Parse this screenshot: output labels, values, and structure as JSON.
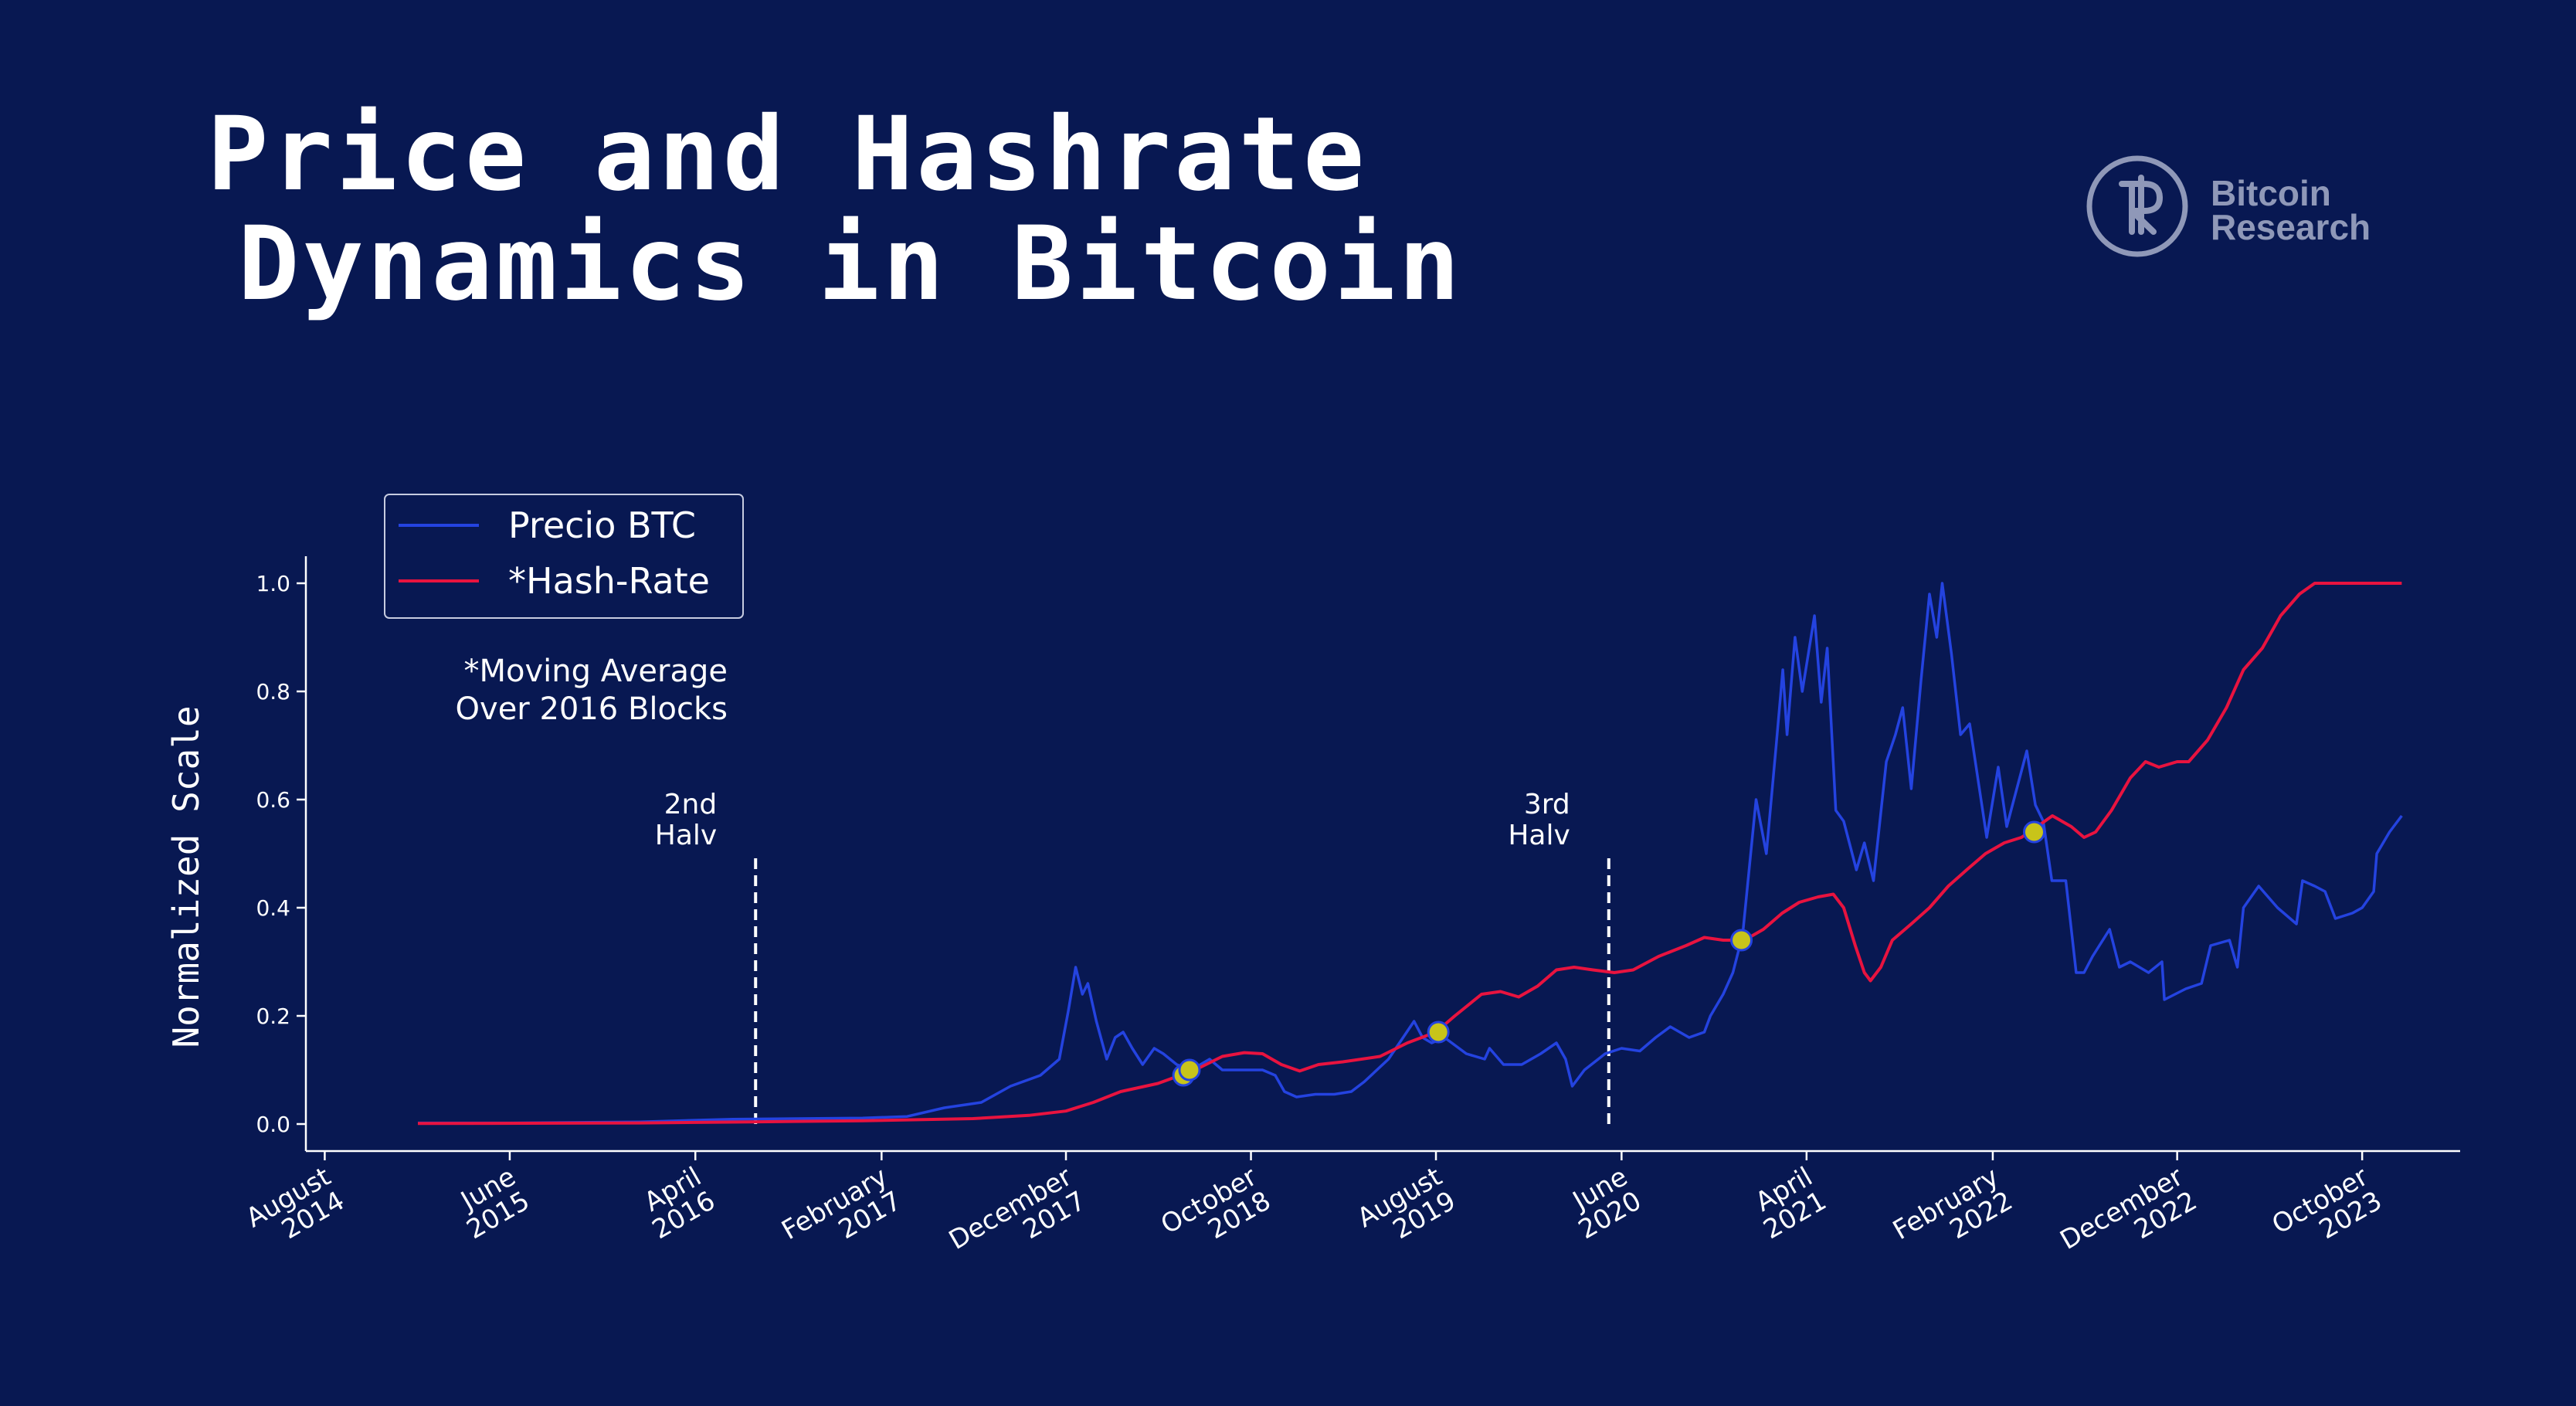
{
  "title": {
    "line1": "Price and Hashrate",
    "line2": "Dynamics in Bitcoin"
  },
  "logo": {
    "line1": "Bitcoin",
    "line2": "Research",
    "icon": "bitcoin-research-logo-icon",
    "color": "#8f98b8"
  },
  "colors": {
    "background": "#081852",
    "price": "#2443e0",
    "hashrate": "#e8133f",
    "intersection_marker": "#c8c41a"
  },
  "chart_data": {
    "type": "line",
    "title": "Price and Hashrate Dynamics in Bitcoin",
    "xlabel": "",
    "ylabel": "Normalized Scale",
    "ylim": [
      -0.05,
      1.05
    ],
    "xlim": [
      "2014-07-01",
      "2024-03-10"
    ],
    "y_ticks": [
      0.0,
      0.2,
      0.4,
      0.6,
      0.8,
      1.0
    ],
    "y_tick_labels": [
      "0.0",
      "0.2",
      "0.4",
      "0.6",
      "0.8",
      "1.0"
    ],
    "x_ticks": [
      {
        "date": "2014-08-01",
        "label": [
          "August",
          "2014"
        ]
      },
      {
        "date": "2015-06-01",
        "label": [
          "June",
          "2015"
        ]
      },
      {
        "date": "2016-04-01",
        "label": [
          "April",
          "2016"
        ]
      },
      {
        "date": "2017-02-01",
        "label": [
          "February",
          "2017"
        ]
      },
      {
        "date": "2017-12-01",
        "label": [
          "December",
          "2017"
        ]
      },
      {
        "date": "2018-10-01",
        "label": [
          "October",
          "2018"
        ]
      },
      {
        "date": "2019-08-01",
        "label": [
          "August",
          "2019"
        ]
      },
      {
        "date": "2020-06-01",
        "label": [
          "June",
          "2020"
        ]
      },
      {
        "date": "2021-04-01",
        "label": [
          "April",
          "2021"
        ]
      },
      {
        "date": "2022-02-01",
        "label": [
          "February",
          "2022"
        ]
      },
      {
        "date": "2022-12-01",
        "label": [
          "December",
          "2022"
        ]
      },
      {
        "date": "2023-10-01",
        "label": [
          "October",
          "2023"
        ]
      }
    ],
    "legend": {
      "position": "top-left",
      "entries": [
        "Precio BTC",
        "*Hash-Rate"
      ]
    },
    "grid": false,
    "annotations": [
      {
        "lines": [
          "*Moving Average",
          "Over 2016 Blocks"
        ]
      }
    ],
    "halvings": [
      {
        "date": "2016-07-09",
        "label": [
          "2nd",
          "Halv"
        ],
        "y_top": 0.5
      },
      {
        "date": "2020-05-11",
        "label": [
          "3rd",
          "Halv"
        ],
        "y_top": 0.5
      }
    ],
    "crossings": [
      {
        "date": "2018-06-12",
        "value": 0.09
      },
      {
        "date": "2018-06-22",
        "value": 0.1
      },
      {
        "date": "2019-08-05",
        "value": 0.17
      },
      {
        "date": "2020-12-15",
        "value": 0.34
      },
      {
        "date": "2022-04-10",
        "value": 0.54
      }
    ],
    "series": [
      {
        "name": "Precio BTC",
        "color": "#2443e0",
        "points": [
          [
            "2015-01-01",
            0.002
          ],
          [
            "2015-06-01",
            0.002
          ],
          [
            "2016-01-01",
            0.004
          ],
          [
            "2016-06-01",
            0.009
          ],
          [
            "2017-01-01",
            0.011
          ],
          [
            "2017-03-15",
            0.014
          ],
          [
            "2017-05-15",
            0.03
          ],
          [
            "2017-07-15",
            0.04
          ],
          [
            "2017-09-01",
            0.07
          ],
          [
            "2017-10-20",
            0.09
          ],
          [
            "2017-11-20",
            0.12
          ],
          [
            "2017-12-05",
            0.21
          ],
          [
            "2017-12-17",
            0.29
          ],
          [
            "2017-12-28",
            0.24
          ],
          [
            "2018-01-06",
            0.26
          ],
          [
            "2018-01-20",
            0.19
          ],
          [
            "2018-02-06",
            0.12
          ],
          [
            "2018-02-20",
            0.16
          ],
          [
            "2018-03-05",
            0.17
          ],
          [
            "2018-03-20",
            0.14
          ],
          [
            "2018-04-06",
            0.11
          ],
          [
            "2018-04-25",
            0.14
          ],
          [
            "2018-05-10",
            0.13
          ],
          [
            "2018-06-01",
            0.11
          ],
          [
            "2018-06-25",
            0.1
          ],
          [
            "2018-07-25",
            0.12
          ],
          [
            "2018-08-15",
            0.1
          ],
          [
            "2018-09-15",
            0.1
          ],
          [
            "2018-10-20",
            0.1
          ],
          [
            "2018-11-10",
            0.09
          ],
          [
            "2018-11-25",
            0.06
          ],
          [
            "2018-12-15",
            0.05
          ],
          [
            "2019-01-15",
            0.055
          ],
          [
            "2019-02-15",
            0.055
          ],
          [
            "2019-03-15",
            0.06
          ],
          [
            "2019-04-05",
            0.078
          ],
          [
            "2019-05-15",
            0.12
          ],
          [
            "2019-06-26",
            0.19
          ],
          [
            "2019-07-10",
            0.16
          ],
          [
            "2019-07-25",
            0.15
          ],
          [
            "2019-08-15",
            0.16
          ],
          [
            "2019-09-20",
            0.13
          ],
          [
            "2019-10-20",
            0.12
          ],
          [
            "2019-10-28",
            0.14
          ],
          [
            "2019-11-20",
            0.11
          ],
          [
            "2019-12-20",
            0.11
          ],
          [
            "2020-01-20",
            0.13
          ],
          [
            "2020-02-15",
            0.15
          ],
          [
            "2020-03-01",
            0.12
          ],
          [
            "2020-03-12",
            0.07
          ],
          [
            "2020-04-01",
            0.1
          ],
          [
            "2020-05-05",
            0.13
          ],
          [
            "2020-06-01",
            0.14
          ],
          [
            "2020-07-01",
            0.135
          ],
          [
            "2020-07-27",
            0.16
          ],
          [
            "2020-08-20",
            0.18
          ],
          [
            "2020-09-20",
            0.16
          ],
          [
            "2020-10-15",
            0.17
          ],
          [
            "2020-10-25",
            0.2
          ],
          [
            "2020-11-15",
            0.24
          ],
          [
            "2020-12-01",
            0.28
          ],
          [
            "2020-12-17",
            0.35
          ],
          [
            "2021-01-08",
            0.6
          ],
          [
            "2021-01-25",
            0.5
          ],
          [
            "2021-02-10",
            0.7
          ],
          [
            "2021-02-21",
            0.84
          ],
          [
            "2021-02-28",
            0.72
          ],
          [
            "2021-03-13",
            0.9
          ],
          [
            "2021-03-25",
            0.8
          ],
          [
            "2021-04-14",
            0.94
          ],
          [
            "2021-04-25",
            0.78
          ],
          [
            "2021-05-05",
            0.88
          ],
          [
            "2021-05-19",
            0.58
          ],
          [
            "2021-06-01",
            0.56
          ],
          [
            "2021-06-22",
            0.47
          ],
          [
            "2021-07-05",
            0.52
          ],
          [
            "2021-07-20",
            0.45
          ],
          [
            "2021-08-10",
            0.67
          ],
          [
            "2021-08-25",
            0.72
          ],
          [
            "2021-09-06",
            0.77
          ],
          [
            "2021-09-20",
            0.62
          ],
          [
            "2021-10-06",
            0.82
          ],
          [
            "2021-10-20",
            0.98
          ],
          [
            "2021-11-01",
            0.9
          ],
          [
            "2021-11-10",
            1.0
          ],
          [
            "2021-11-25",
            0.87
          ],
          [
            "2021-12-10",
            0.72
          ],
          [
            "2021-12-25",
            0.74
          ],
          [
            "2022-01-10",
            0.62
          ],
          [
            "2022-01-22",
            0.53
          ],
          [
            "2022-02-10",
            0.66
          ],
          [
            "2022-02-24",
            0.55
          ],
          [
            "2022-03-29",
            0.69
          ],
          [
            "2022-04-12",
            0.59
          ],
          [
            "2022-04-25",
            0.56
          ],
          [
            "2022-05-09",
            0.45
          ],
          [
            "2022-06-01",
            0.45
          ],
          [
            "2022-06-18",
            0.28
          ],
          [
            "2022-07-01",
            0.28
          ],
          [
            "2022-07-15",
            0.31
          ],
          [
            "2022-08-12",
            0.36
          ],
          [
            "2022-08-28",
            0.29
          ],
          [
            "2022-09-15",
            0.3
          ],
          [
            "2022-10-15",
            0.28
          ],
          [
            "2022-11-06",
            0.3
          ],
          [
            "2022-11-10",
            0.23
          ],
          [
            "2022-12-15",
            0.25
          ],
          [
            "2023-01-10",
            0.26
          ],
          [
            "2023-01-25",
            0.33
          ],
          [
            "2023-02-25",
            0.34
          ],
          [
            "2023-03-10",
            0.29
          ],
          [
            "2023-03-20",
            0.4
          ],
          [
            "2023-04-14",
            0.44
          ],
          [
            "2023-05-15",
            0.4
          ],
          [
            "2023-06-15",
            0.37
          ],
          [
            "2023-06-25",
            0.45
          ],
          [
            "2023-07-15",
            0.44
          ],
          [
            "2023-08-01",
            0.43
          ],
          [
            "2023-08-18",
            0.38
          ],
          [
            "2023-09-15",
            0.39
          ],
          [
            "2023-10-01",
            0.4
          ],
          [
            "2023-10-20",
            0.43
          ],
          [
            "2023-10-25",
            0.5
          ],
          [
            "2023-11-15",
            0.54
          ],
          [
            "2023-12-05",
            0.57
          ]
        ]
      },
      {
        "name": "*Hash-Rate",
        "color": "#e8133f",
        "points": [
          [
            "2015-01-01",
            0.001
          ],
          [
            "2016-01-01",
            0.002
          ],
          [
            "2016-07-01",
            0.004
          ],
          [
            "2017-01-01",
            0.006
          ],
          [
            "2017-07-01",
            0.01
          ],
          [
            "2017-10-01",
            0.016
          ],
          [
            "2017-12-01",
            0.024
          ],
          [
            "2018-01-15",
            0.04
          ],
          [
            "2018-03-01",
            0.06
          ],
          [
            "2018-05-01",
            0.075
          ],
          [
            "2018-07-01",
            0.1
          ],
          [
            "2018-08-15",
            0.125
          ],
          [
            "2018-09-20",
            0.132
          ],
          [
            "2018-10-20",
            0.13
          ],
          [
            "2018-11-20",
            0.11
          ],
          [
            "2018-12-20",
            0.098
          ],
          [
            "2019-01-20",
            0.11
          ],
          [
            "2019-03-01",
            0.115
          ],
          [
            "2019-05-01",
            0.125
          ],
          [
            "2019-06-15",
            0.15
          ],
          [
            "2019-08-01",
            0.17
          ],
          [
            "2019-09-01",
            0.2
          ],
          [
            "2019-10-15",
            0.24
          ],
          [
            "2019-11-15",
            0.245
          ],
          [
            "2019-12-15",
            0.235
          ],
          [
            "2020-01-15",
            0.255
          ],
          [
            "2020-02-15",
            0.285
          ],
          [
            "2020-03-15",
            0.29
          ],
          [
            "2020-04-15",
            0.285
          ],
          [
            "2020-05-20",
            0.28
          ],
          [
            "2020-06-20",
            0.285
          ],
          [
            "2020-08-01",
            0.31
          ],
          [
            "2020-09-15",
            0.33
          ],
          [
            "2020-10-15",
            0.345
          ],
          [
            "2020-11-15",
            0.34
          ],
          [
            "2020-12-20",
            0.34
          ],
          [
            "2021-01-20",
            0.36
          ],
          [
            "2021-02-20",
            0.39
          ],
          [
            "2021-03-20",
            0.41
          ],
          [
            "2021-04-20",
            0.42
          ],
          [
            "2021-05-15",
            0.425
          ],
          [
            "2021-06-01",
            0.4
          ],
          [
            "2021-06-20",
            0.33
          ],
          [
            "2021-07-05",
            0.28
          ],
          [
            "2021-07-15",
            0.265
          ],
          [
            "2021-08-01",
            0.29
          ],
          [
            "2021-08-20",
            0.34
          ],
          [
            "2021-09-20",
            0.37
          ],
          [
            "2021-10-20",
            0.4
          ],
          [
            "2021-11-20",
            0.44
          ],
          [
            "2021-12-20",
            0.47
          ],
          [
            "2022-01-20",
            0.5
          ],
          [
            "2022-02-20",
            0.52
          ],
          [
            "2022-03-20",
            0.53
          ],
          [
            "2022-04-15",
            0.55
          ],
          [
            "2022-05-10",
            0.57
          ],
          [
            "2022-06-10",
            0.55
          ],
          [
            "2022-07-01",
            0.53
          ],
          [
            "2022-07-20",
            0.54
          ],
          [
            "2022-08-15",
            0.58
          ],
          [
            "2022-09-15",
            0.64
          ],
          [
            "2022-10-10",
            0.67
          ],
          [
            "2022-11-01",
            0.66
          ],
          [
            "2022-12-01",
            0.67
          ],
          [
            "2022-12-20",
            0.67
          ],
          [
            "2023-01-20",
            0.71
          ],
          [
            "2023-02-20",
            0.77
          ],
          [
            "2023-03-20",
            0.84
          ],
          [
            "2023-04-20",
            0.88
          ],
          [
            "2023-05-20",
            0.94
          ],
          [
            "2023-06-20",
            0.98
          ],
          [
            "2023-07-15",
            1.0
          ],
          [
            "2023-09-01",
            1.0
          ],
          [
            "2023-12-05",
            1.0
          ]
        ]
      }
    ]
  }
}
